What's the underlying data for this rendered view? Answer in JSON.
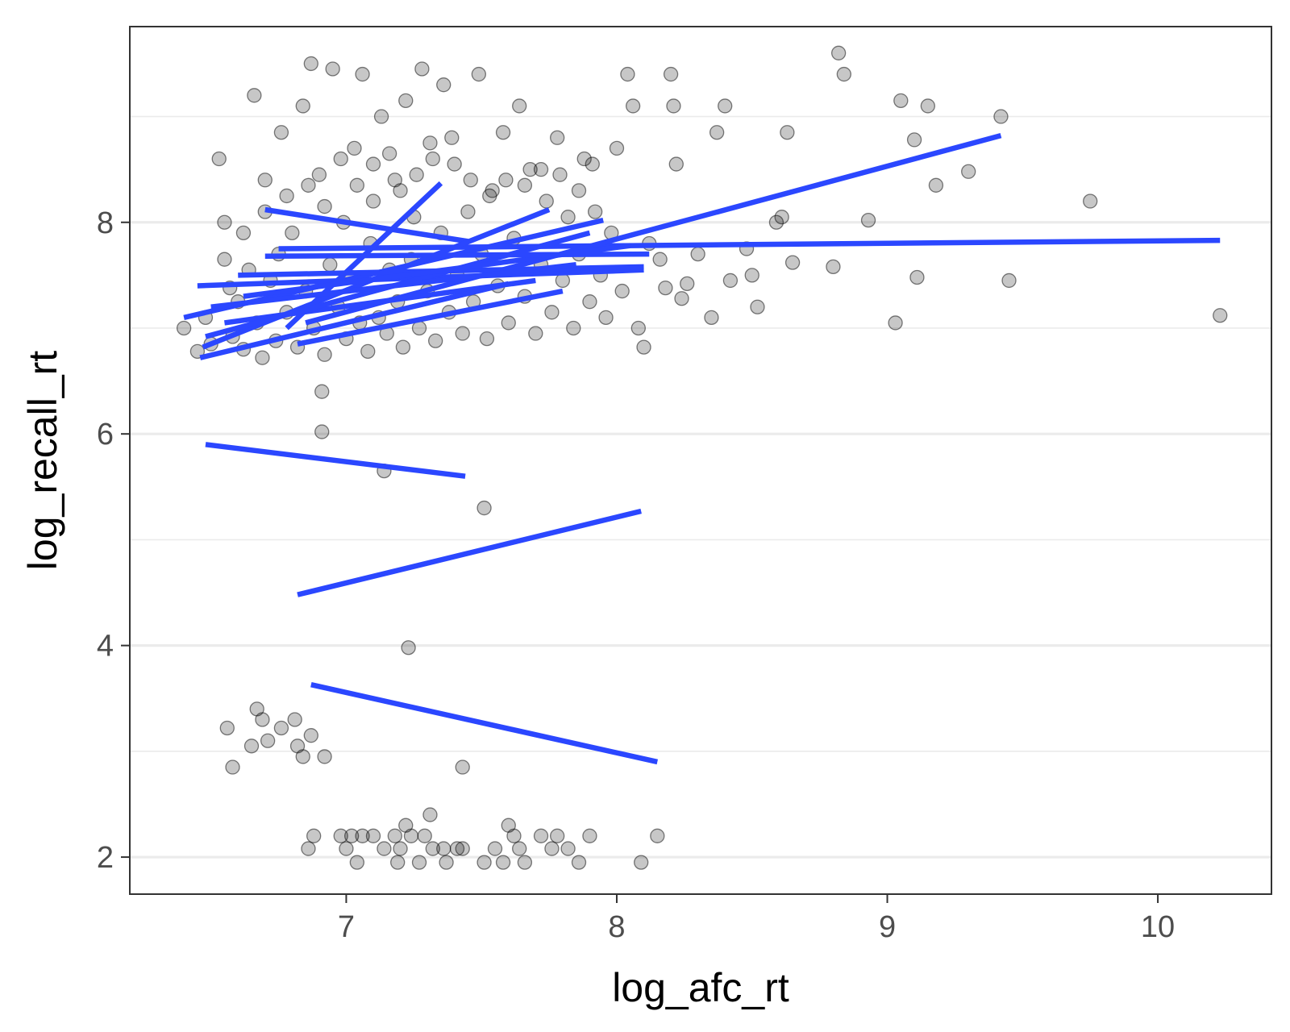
{
  "chart_data": {
    "type": "scatter",
    "xlabel": "log_afc_rt",
    "ylabel": "log_recall_rt",
    "xlim": [
      6.2,
      10.42
    ],
    "ylim": [
      1.65,
      9.85
    ],
    "x_ticks": [
      7,
      8,
      9,
      10
    ],
    "x_tick_labels": [
      "7",
      "8",
      "9",
      "10"
    ],
    "y_ticks": [
      2,
      4,
      6,
      8
    ],
    "y_tick_labels": [
      "2",
      "4",
      "6",
      "8"
    ],
    "y_minor_gridlines": [
      3,
      5,
      7,
      9
    ],
    "grid": "horizontal only",
    "legend": "none",
    "point_color": "#000000",
    "point_alpha": 0.22,
    "line_color": "#2b47ff",
    "points": [
      [
        6.4,
        7.0
      ],
      [
        6.45,
        6.78
      ],
      [
        6.48,
        7.1
      ],
      [
        6.5,
        6.85
      ],
      [
        6.53,
        8.6
      ],
      [
        6.55,
        7.65
      ],
      [
        6.57,
        7.38
      ],
      [
        6.58,
        6.92
      ],
      [
        6.6,
        7.25
      ],
      [
        6.62,
        6.8
      ],
      [
        6.64,
        7.55
      ],
      [
        6.66,
        9.2
      ],
      [
        6.67,
        7.05
      ],
      [
        6.69,
        6.72
      ],
      [
        6.7,
        8.1
      ],
      [
        6.72,
        7.45
      ],
      [
        6.74,
        6.88
      ],
      [
        6.75,
        7.7
      ],
      [
        6.76,
        8.85
      ],
      [
        6.78,
        7.15
      ],
      [
        6.8,
        7.9
      ],
      [
        6.82,
        6.82
      ],
      [
        6.84,
        9.1
      ],
      [
        6.85,
        7.35
      ],
      [
        6.87,
        9.5
      ],
      [
        6.88,
        7.0
      ],
      [
        6.9,
        8.45
      ],
      [
        6.92,
        6.75
      ],
      [
        6.94,
        7.6
      ],
      [
        6.95,
        9.45
      ],
      [
        6.97,
        7.2
      ],
      [
        6.99,
        8.0
      ],
      [
        7.0,
        6.9
      ],
      [
        7.02,
        7.48
      ],
      [
        7.03,
        8.7
      ],
      [
        7.05,
        7.05
      ],
      [
        7.06,
        9.4
      ],
      [
        7.08,
        6.78
      ],
      [
        7.09,
        7.8
      ],
      [
        7.1,
        8.2
      ],
      [
        7.12,
        7.1
      ],
      [
        7.13,
        9.0
      ],
      [
        7.15,
        6.95
      ],
      [
        7.16,
        7.55
      ],
      [
        7.18,
        8.4
      ],
      [
        7.19,
        7.25
      ],
      [
        7.21,
        6.82
      ],
      [
        7.22,
        9.15
      ],
      [
        7.24,
        7.65
      ],
      [
        7.25,
        8.05
      ],
      [
        7.27,
        7.0
      ],
      [
        7.28,
        9.45
      ],
      [
        7.3,
        7.35
      ],
      [
        7.31,
        8.75
      ],
      [
        7.33,
        6.88
      ],
      [
        7.35,
        7.9
      ],
      [
        7.36,
        9.3
      ],
      [
        7.38,
        7.15
      ],
      [
        7.4,
        8.55
      ],
      [
        7.41,
        7.5
      ],
      [
        7.43,
        6.95
      ],
      [
        7.45,
        8.1
      ],
      [
        7.47,
        7.25
      ],
      [
        7.49,
        9.4
      ],
      [
        7.5,
        7.7
      ],
      [
        7.52,
        6.9
      ],
      [
        7.54,
        8.3
      ],
      [
        7.56,
        7.4
      ],
      [
        7.58,
        8.85
      ],
      [
        7.6,
        7.05
      ],
      [
        7.62,
        7.85
      ],
      [
        7.64,
        9.1
      ],
      [
        7.66,
        7.3
      ],
      [
        7.68,
        8.5
      ],
      [
        7.7,
        6.95
      ],
      [
        7.72,
        7.6
      ],
      [
        7.74,
        8.2
      ],
      [
        7.76,
        7.15
      ],
      [
        7.78,
        8.8
      ],
      [
        7.8,
        7.45
      ],
      [
        7.82,
        8.05
      ],
      [
        7.84,
        7.0
      ],
      [
        7.86,
        7.7
      ],
      [
        7.88,
        8.6
      ],
      [
        7.9,
        7.25
      ],
      [
        7.92,
        8.1
      ],
      [
        7.94,
        7.5
      ],
      [
        7.96,
        7.1
      ],
      [
        7.98,
        7.9
      ],
      [
        8.0,
        8.7
      ],
      [
        8.02,
        7.35
      ],
      [
        8.04,
        9.4
      ],
      [
        8.06,
        9.1
      ],
      [
        8.08,
        7.0
      ],
      [
        8.1,
        6.82
      ],
      [
        8.12,
        7.8
      ],
      [
        8.16,
        7.65
      ],
      [
        8.18,
        7.38
      ],
      [
        8.2,
        9.4
      ],
      [
        8.21,
        9.1
      ],
      [
        8.22,
        8.55
      ],
      [
        8.24,
        7.28
      ],
      [
        8.26,
        7.42
      ],
      [
        8.3,
        7.7
      ],
      [
        8.35,
        7.1
      ],
      [
        8.37,
        8.85
      ],
      [
        8.4,
        9.1
      ],
      [
        8.42,
        7.45
      ],
      [
        8.48,
        7.75
      ],
      [
        8.5,
        7.5
      ],
      [
        8.52,
        7.2
      ],
      [
        8.59,
        8.0
      ],
      [
        8.61,
        8.05
      ],
      [
        8.63,
        8.85
      ],
      [
        8.65,
        7.62
      ],
      [
        8.8,
        7.58
      ],
      [
        8.82,
        9.6
      ],
      [
        8.84,
        9.4
      ],
      [
        8.93,
        8.02
      ],
      [
        9.03,
        7.05
      ],
      [
        9.05,
        9.15
      ],
      [
        9.1,
        8.78
      ],
      [
        9.11,
        7.48
      ],
      [
        9.15,
        9.1
      ],
      [
        9.18,
        8.35
      ],
      [
        9.3,
        8.48
      ],
      [
        9.42,
        9.0
      ],
      [
        9.45,
        7.45
      ],
      [
        9.75,
        8.2
      ],
      [
        10.23,
        7.12
      ],
      [
        6.55,
        8.0
      ],
      [
        6.62,
        7.9
      ],
      [
        6.7,
        8.4
      ],
      [
        6.78,
        8.25
      ],
      [
        6.86,
        8.35
      ],
      [
        6.92,
        8.15
      ],
      [
        6.98,
        8.6
      ],
      [
        7.04,
        8.35
      ],
      [
        7.1,
        8.55
      ],
      [
        7.16,
        8.65
      ],
      [
        7.2,
        8.3
      ],
      [
        7.26,
        8.45
      ],
      [
        7.32,
        8.6
      ],
      [
        7.39,
        8.8
      ],
      [
        7.46,
        8.4
      ],
      [
        7.53,
        8.25
      ],
      [
        7.59,
        8.4
      ],
      [
        7.66,
        8.35
      ],
      [
        7.72,
        8.5
      ],
      [
        7.79,
        8.45
      ],
      [
        7.86,
        8.3
      ],
      [
        7.91,
        8.55
      ],
      [
        6.91,
        6.4
      ],
      [
        6.91,
        6.02
      ],
      [
        7.14,
        5.65
      ],
      [
        7.51,
        5.3
      ],
      [
        7.23,
        3.98
      ],
      [
        6.56,
        3.22
      ],
      [
        6.58,
        2.85
      ],
      [
        6.65,
        3.05
      ],
      [
        6.67,
        3.4
      ],
      [
        6.69,
        3.3
      ],
      [
        6.71,
        3.1
      ],
      [
        6.76,
        3.22
      ],
      [
        6.81,
        3.3
      ],
      [
        6.82,
        3.05
      ],
      [
        6.84,
        2.95
      ],
      [
        6.87,
        3.15
      ],
      [
        6.92,
        2.95
      ],
      [
        7.43,
        2.85
      ],
      [
        6.86,
        2.08
      ],
      [
        6.88,
        2.2
      ],
      [
        6.98,
        2.2
      ],
      [
        7.0,
        2.08
      ],
      [
        7.02,
        2.2
      ],
      [
        7.04,
        1.95
      ],
      [
        7.06,
        2.2
      ],
      [
        7.1,
        2.2
      ],
      [
        7.14,
        2.08
      ],
      [
        7.18,
        2.2
      ],
      [
        7.19,
        1.95
      ],
      [
        7.2,
        2.08
      ],
      [
        7.22,
        2.3
      ],
      [
        7.24,
        2.2
      ],
      [
        7.27,
        1.95
      ],
      [
        7.29,
        2.2
      ],
      [
        7.31,
        2.4
      ],
      [
        7.32,
        2.08
      ],
      [
        7.36,
        2.08
      ],
      [
        7.37,
        1.95
      ],
      [
        7.41,
        2.08
      ],
      [
        7.43,
        2.08
      ],
      [
        7.51,
        1.95
      ],
      [
        7.55,
        2.08
      ],
      [
        7.58,
        1.95
      ],
      [
        7.6,
        2.3
      ],
      [
        7.62,
        2.2
      ],
      [
        7.64,
        2.08
      ],
      [
        7.66,
        1.95
      ],
      [
        7.72,
        2.2
      ],
      [
        7.76,
        2.08
      ],
      [
        7.78,
        2.2
      ],
      [
        7.82,
        2.08
      ],
      [
        7.86,
        1.95
      ],
      [
        7.9,
        2.2
      ],
      [
        8.09,
        1.95
      ],
      [
        8.15,
        2.2
      ]
    ],
    "series": [
      {
        "type": "line",
        "x": [
          6.4,
          7.95
        ],
        "y": [
          7.1,
          8.02
        ]
      },
      {
        "type": "line",
        "x": [
          6.45,
          8.1
        ],
        "y": [
          7.4,
          7.55
        ]
      },
      {
        "type": "line",
        "x": [
          6.7,
          7.45
        ],
        "y": [
          8.12,
          7.82
        ]
      },
      {
        "type": "line",
        "x": [
          6.75,
          10.23
        ],
        "y": [
          7.75,
          7.83
        ]
      },
      {
        "type": "line",
        "x": [
          6.85,
          9.42
        ],
        "y": [
          7.05,
          8.82
        ]
      },
      {
        "type": "line",
        "x": [
          6.78,
          7.35
        ],
        "y": [
          7.0,
          8.37
        ]
      },
      {
        "type": "line",
        "x": [
          6.47,
          7.75
        ],
        "y": [
          6.82,
          8.12
        ]
      },
      {
        "type": "line",
        "x": [
          6.55,
          7.7
        ],
        "y": [
          7.05,
          7.45
        ]
      },
      {
        "type": "line",
        "x": [
          6.48,
          7.9
        ],
        "y": [
          6.92,
          7.9
        ]
      },
      {
        "type": "line",
        "x": [
          6.46,
          7.6
        ],
        "y": [
          6.72,
          7.42
        ]
      },
      {
        "type": "line",
        "x": [
          6.6,
          8.1
        ],
        "y": [
          7.5,
          7.58
        ]
      },
      {
        "type": "line",
        "x": [
          6.62,
          8.05
        ],
        "y": [
          7.3,
          7.78
        ]
      },
      {
        "type": "line",
        "x": [
          6.5,
          7.85
        ],
        "y": [
          7.2,
          7.6
        ]
      },
      {
        "type": "line",
        "x": [
          6.82,
          7.8
        ],
        "y": [
          6.85,
          7.35
        ]
      },
      {
        "type": "line",
        "x": [
          6.7,
          8.12
        ],
        "y": [
          7.68,
          7.7
        ]
      },
      {
        "type": "line",
        "x": [
          6.48,
          7.44
        ],
        "y": [
          5.9,
          5.6
        ]
      },
      {
        "type": "line",
        "x": [
          6.82,
          8.09
        ],
        "y": [
          4.48,
          5.27
        ]
      },
      {
        "type": "line",
        "x": [
          6.87,
          8.15
        ],
        "y": [
          3.63,
          2.9
        ]
      }
    ]
  }
}
